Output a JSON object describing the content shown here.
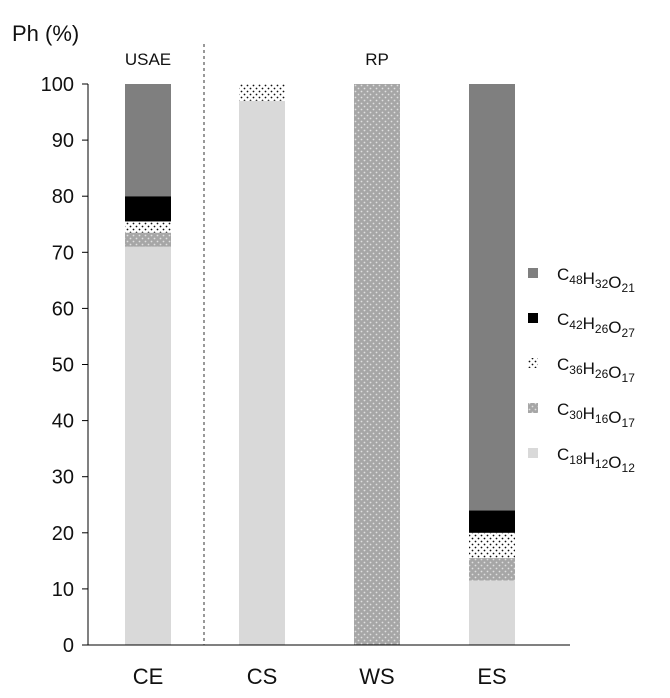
{
  "chart_data": {
    "type": "bar",
    "stacked": true,
    "ylabel": "Ph (%)",
    "ylim": [
      0,
      100
    ],
    "yticks": [
      0,
      10,
      20,
      30,
      40,
      50,
      60,
      70,
      80,
      90,
      100
    ],
    "categories": [
      "CE",
      "CS",
      "WS",
      "ES"
    ],
    "groups": [
      {
        "label": "USAE",
        "categories": [
          "CE"
        ]
      },
      {
        "label": "RP",
        "categories": [
          "CS",
          "WS",
          "ES"
        ]
      }
    ],
    "series": [
      {
        "name": "C18H12O12",
        "formula": [
          [
            "C",
            "18"
          ],
          [
            "H",
            "12"
          ],
          [
            "O",
            "12"
          ]
        ],
        "pattern": "light",
        "values": [
          71,
          97,
          0,
          11.5
        ]
      },
      {
        "name": "C30H16O17",
        "formula": [
          [
            "C",
            "30"
          ],
          [
            "H",
            "16"
          ],
          [
            "O",
            "17"
          ]
        ],
        "pattern": "gray-dots",
        "values": [
          2.5,
          0,
          100,
          4
        ]
      },
      {
        "name": "C36H26O17",
        "formula": [
          [
            "C",
            "36"
          ],
          [
            "H",
            "26"
          ],
          [
            "O",
            "17"
          ]
        ],
        "pattern": "white-dots",
        "values": [
          2,
          3,
          0,
          4.5
        ]
      },
      {
        "name": "C42H26O27",
        "formula": [
          [
            "C",
            "42"
          ],
          [
            "H",
            "26"
          ],
          [
            "O",
            "27"
          ]
        ],
        "pattern": "black",
        "values": [
          4.5,
          0,
          0,
          4
        ]
      },
      {
        "name": "C48H32O21",
        "formula": [
          [
            "C",
            "48"
          ],
          [
            "H",
            "32"
          ],
          [
            "O",
            "21"
          ]
        ],
        "pattern": "dark",
        "values": [
          20,
          0,
          0,
          76
        ]
      }
    ],
    "legend_position": "right",
    "grid": false,
    "colors": {
      "light": "#d9d9d9",
      "gray_dots_bg": "#a6a6a6",
      "gray_dots_fg": "#e0e0e0",
      "white_dots_bg": "#ffffff",
      "white_dots_fg": "#111111",
      "black": "#000000",
      "dark": "#7f7f7f",
      "axis": "#000000"
    }
  }
}
